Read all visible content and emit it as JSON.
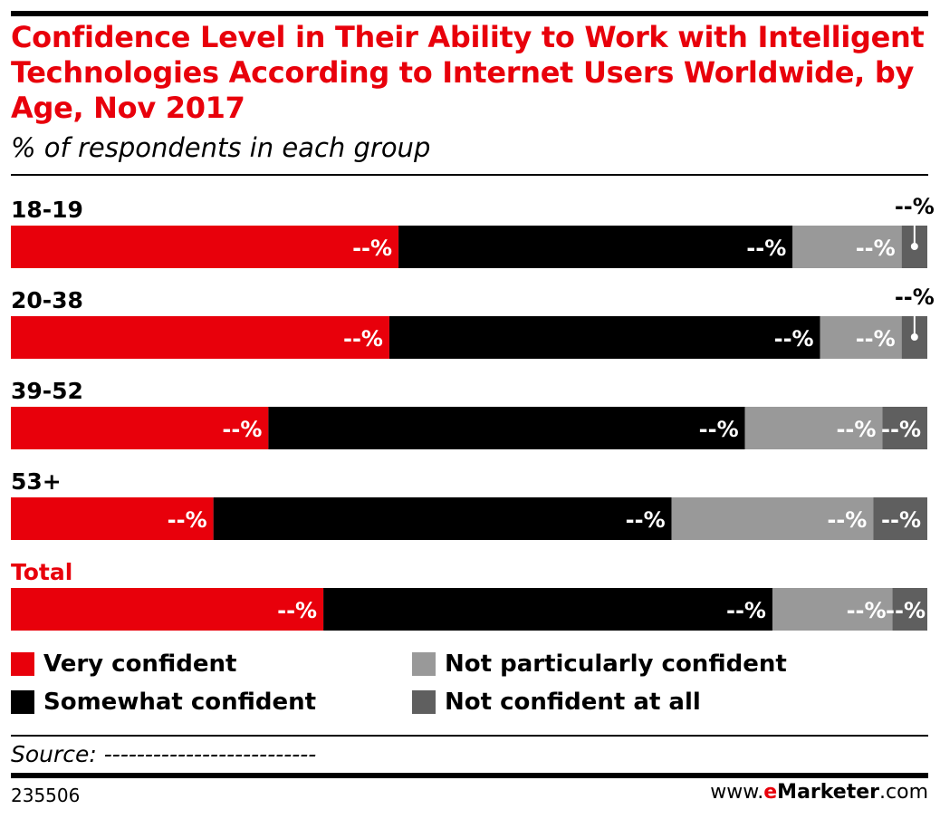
{
  "header": {
    "title": "Confidence Level in Their Ability to Work with Intelligent Technologies According to Internet Users Worldwide, by Age, Nov 2017",
    "subtitle": "% of respondents in each group"
  },
  "chart_data": {
    "type": "bar",
    "orientation": "horizontal",
    "stacked": true,
    "percent_stacked": true,
    "categories": [
      "18-19",
      "20-38",
      "39-52",
      "53+",
      "Total"
    ],
    "highlight_category": "Total",
    "value_label": "--%",
    "series": [
      {
        "name": "Very confident",
        "color": "#e8000b",
        "values": [
          42.3,
          41.3,
          28.1,
          22.1,
          34.1
        ]
      },
      {
        "name": "Somewhat confident",
        "color": "#000000",
        "values": [
          43.0,
          47.0,
          52.0,
          50.0,
          49.0
        ]
      },
      {
        "name": "Not particularly confident",
        "color": "#999999",
        "values": [
          11.9,
          8.9,
          15.0,
          22.0,
          13.1
        ]
      },
      {
        "name": "Not confident at all",
        "color": "#5f5f5f",
        "values": [
          2.8,
          2.8,
          4.9,
          5.9,
          3.8
        ]
      }
    ],
    "xlim": [
      0,
      100
    ],
    "grid": false,
    "legend_position": "bottom"
  },
  "footer": {
    "source": "Source: --------------------------",
    "chart_id": "235506",
    "brand_prefix": "www.",
    "brand_e": "e",
    "brand_rest": "Marketer",
    "brand_suffix": ".com"
  }
}
